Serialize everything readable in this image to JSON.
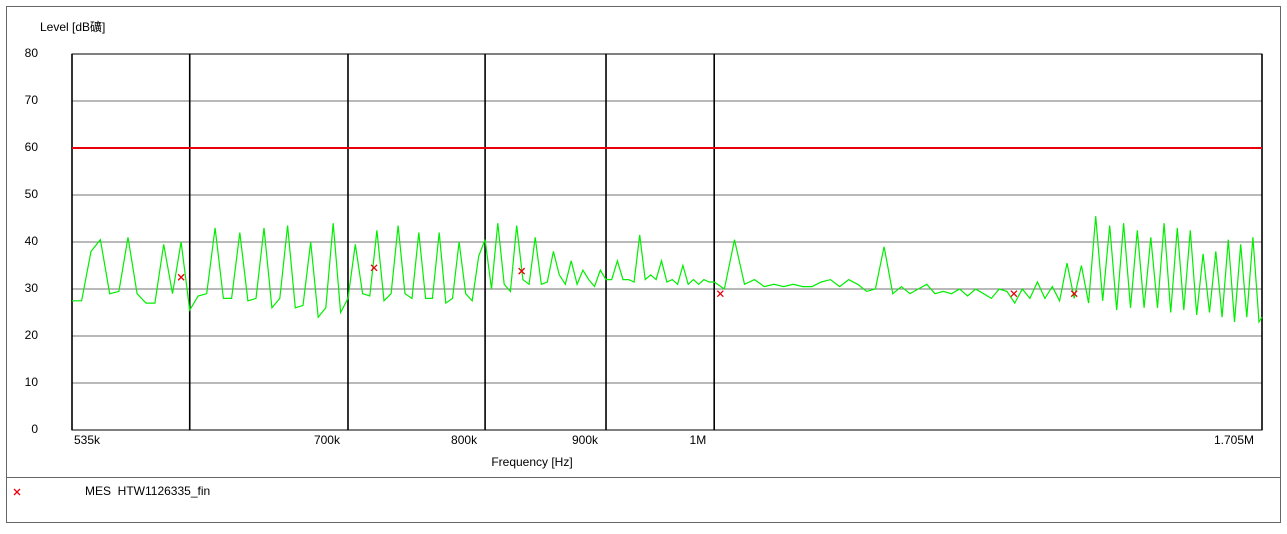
{
  "chart_data": {
    "type": "line",
    "ylabel": "Level [dB礦]",
    "xlabel": "Frequency [Hz]",
    "log_x": true,
    "grid": true,
    "xlim": [
      535000,
      1705000
    ],
    "xticks": [
      {
        "value": 535000,
        "label": "535k"
      },
      {
        "value": 600000,
        "label": null
      },
      {
        "value": 700000,
        "label": "700k"
      },
      {
        "value": 800000,
        "label": "800k"
      },
      {
        "value": 900000,
        "label": "900k"
      },
      {
        "value": 1000000,
        "label": "1M"
      },
      {
        "value": 1705000,
        "label": "1.705M"
      }
    ],
    "ylim": [
      0,
      80
    ],
    "yticks": [
      0,
      10,
      20,
      30,
      40,
      50,
      60,
      70,
      80
    ],
    "limit_lines": [
      {
        "value": 60,
        "color": "#e8000b"
      }
    ],
    "series": [
      {
        "color": "#00ee00",
        "x": [
          535000,
          540000,
          545000,
          550000,
          555000,
          560000,
          565000,
          570000,
          575000,
          580000,
          585000,
          590000,
          595000,
          600000,
          605000,
          610000,
          615000,
          620000,
          625000,
          630000,
          635000,
          640000,
          645000,
          650000,
          655000,
          660000,
          665000,
          670000,
          675000,
          680000,
          685000,
          690000,
          695000,
          700000,
          705000,
          710000,
          715000,
          720000,
          725000,
          730000,
          735000,
          740000,
          745000,
          750000,
          755000,
          760000,
          765000,
          770000,
          775000,
          780000,
          785000,
          790000,
          795000,
          800000,
          805000,
          810000,
          815000,
          820000,
          825000,
          830000,
          835000,
          840000,
          845000,
          850000,
          855000,
          860000,
          865000,
          870000,
          875000,
          880000,
          885000,
          890000,
          895000,
          900000,
          905000,
          910000,
          915000,
          920000,
          925000,
          930000,
          935000,
          940000,
          945000,
          950000,
          955000,
          960000,
          965000,
          970000,
          975000,
          980000,
          985000,
          990000,
          995000,
          1000000,
          1010000,
          1020000,
          1030000,
          1040000,
          1050000,
          1060000,
          1070000,
          1080000,
          1090000,
          1100000,
          1110000,
          1120000,
          1130000,
          1140000,
          1150000,
          1160000,
          1170000,
          1180000,
          1190000,
          1200000,
          1210000,
          1220000,
          1230000,
          1240000,
          1250000,
          1260000,
          1270000,
          1280000,
          1290000,
          1300000,
          1310000,
          1320000,
          1330000,
          1340000,
          1350000,
          1360000,
          1370000,
          1380000,
          1390000,
          1400000,
          1410000,
          1420000,
          1430000,
          1440000,
          1450000,
          1460000,
          1470000,
          1480000,
          1490000,
          1500000,
          1510000,
          1520000,
          1530000,
          1540000,
          1550000,
          1560000,
          1570000,
          1580000,
          1590000,
          1600000,
          1610000,
          1620000,
          1630000,
          1640000,
          1650000,
          1660000,
          1670000,
          1680000,
          1690000,
          1700000,
          1705000
        ],
        "values": [
          27.5,
          27.5,
          38,
          40.5,
          29,
          29.5,
          41,
          29,
          27,
          27,
          39.5,
          29,
          40,
          25.5,
          28.5,
          29,
          43,
          28,
          28,
          42,
          27.5,
          28,
          43,
          26,
          28,
          43.5,
          26,
          26.5,
          40,
          24,
          26,
          44,
          25,
          28,
          39.5,
          29,
          28.5,
          42.5,
          27.5,
          29,
          43.5,
          29,
          28,
          42,
          28,
          28,
          42,
          27,
          28,
          40,
          29,
          27.5,
          37,
          40.5,
          30,
          44,
          31,
          29.5,
          43.5,
          32,
          31,
          41,
          31,
          31.5,
          38,
          33,
          31,
          36,
          31,
          34,
          32,
          30.5,
          34,
          32,
          32,
          36,
          32,
          32,
          31.5,
          41.5,
          32,
          33,
          32,
          36,
          31.5,
          32,
          31,
          35,
          31,
          32,
          31,
          32,
          31.5,
          31.5,
          30,
          40.5,
          31,
          32,
          30.5,
          31,
          30.5,
          31,
          30.5,
          30.5,
          31.5,
          32,
          30.5,
          32,
          31,
          29.5,
          30,
          39,
          29,
          30.5,
          29,
          30,
          31,
          29,
          29.5,
          29,
          30,
          28.5,
          30,
          29,
          28,
          30,
          29.5,
          27,
          30,
          28,
          31.5,
          28,
          30.5,
          27.5,
          35.5,
          28,
          35,
          27,
          45.5,
          27.5,
          43.5,
          25.5,
          44,
          26,
          42.5,
          26,
          41,
          26,
          44,
          25,
          43,
          25.5,
          42.5,
          24.5,
          37.5,
          25,
          38,
          24,
          40.5,
          23,
          39.5,
          24,
          41,
          23,
          24
        ]
      },
      {
        "name": "MES  HTW1126335_fin",
        "color": "#e8000b",
        "marker": "x",
        "x": [
          595000,
          718000,
          829000,
          1006000,
          1339000,
          1420000
        ],
        "values": [
          32.5,
          34.5,
          33.8,
          29,
          29,
          29
        ]
      }
    ]
  }
}
